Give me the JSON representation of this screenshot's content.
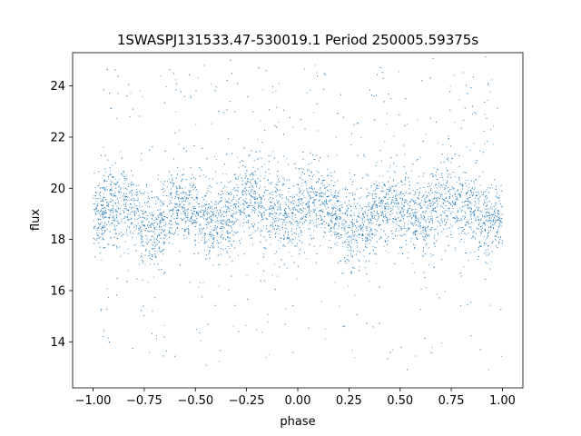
{
  "chart_data": {
    "type": "scatter",
    "title": "1SWASPJ131533.47-530019.1 Period 250005.59375s",
    "xlabel": "phase",
    "ylabel": "flux",
    "xlim": [
      -1.1,
      1.1
    ],
    "ylim": [
      12.2,
      25.3
    ],
    "xticks": [
      -1.0,
      -0.75,
      -0.5,
      -0.25,
      0.0,
      0.25,
      0.5,
      0.75,
      1.0
    ],
    "xtick_labels": [
      "−1.00",
      "−0.75",
      "−0.50",
      "−0.25",
      "0.00",
      "0.25",
      "0.50",
      "0.75",
      "1.00"
    ],
    "yticks": [
      14,
      16,
      18,
      20,
      22,
      24
    ],
    "ytick_labels": [
      "14",
      "16",
      "18",
      "20",
      "22",
      "24"
    ],
    "grid": false,
    "point_color": "#1f77b4",
    "series": [
      {
        "x_range": [
          -1.0,
          1.0
        ],
        "baseline_flux": 19.0,
        "band_low": 17.5,
        "band_high": 20.5,
        "outlier_range": [
          12.8,
          25.2
        ],
        "profile_phase": [
          -1.0,
          -0.85,
          -0.75,
          -0.7,
          -0.6,
          -0.5,
          -0.4,
          -0.3,
          -0.25,
          -0.15,
          -0.05,
          0.0,
          0.05,
          0.15,
          0.25,
          0.3,
          0.4,
          0.5,
          0.6,
          0.7,
          0.75,
          0.85,
          0.95,
          1.0
        ],
        "profile_flux": [
          19.0,
          19.4,
          18.6,
          18.4,
          19.5,
          19.0,
          18.6,
          19.3,
          19.6,
          19.3,
          18.7,
          18.9,
          19.6,
          19.2,
          18.5,
          18.4,
          19.4,
          19.2,
          18.7,
          19.4,
          19.6,
          19.1,
          18.6,
          18.9
        ]
      }
    ]
  }
}
